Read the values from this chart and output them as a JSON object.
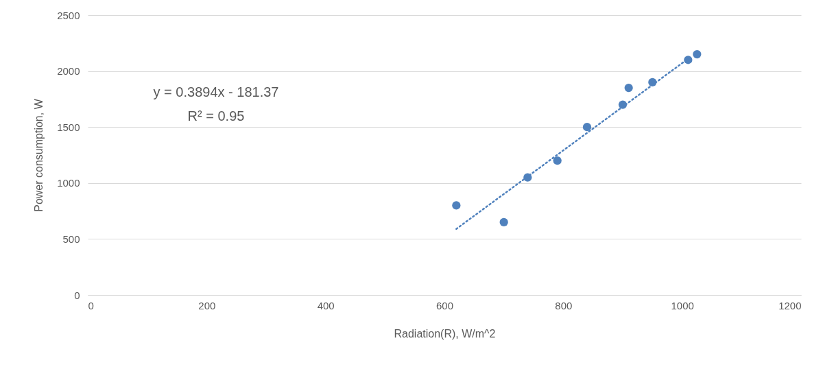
{
  "chart_data": {
    "type": "scatter",
    "xlabel": "Radiation(R), W/m^2",
    "ylabel": "Power consumption, W",
    "xlim": [
      0,
      1200
    ],
    "xticks": [
      0,
      200,
      400,
      600,
      800,
      1000,
      1200
    ],
    "ylim": [
      0,
      2500
    ],
    "yticks": [
      0,
      500,
      1000,
      1500,
      2000,
      2500
    ],
    "grid": "y",
    "annotations": [
      "y = 0.3894x - 181.37",
      "R² = 0.95"
    ],
    "series": [
      {
        "color": "#4f81bd",
        "marker": "circle",
        "x": [
          620,
          700,
          740,
          790,
          840,
          900,
          910,
          950,
          1010,
          1025
        ],
        "values": [
          800,
          650,
          1050,
          1200,
          1500,
          1700,
          1850,
          1900,
          2100,
          2150
        ]
      },
      {
        "type": "line",
        "color": "#4f81bd",
        "marker": "none",
        "line_style": "dotted",
        "x": [
          620,
          1010
        ],
        "values": [
          590,
          2110
        ]
      }
    ]
  }
}
